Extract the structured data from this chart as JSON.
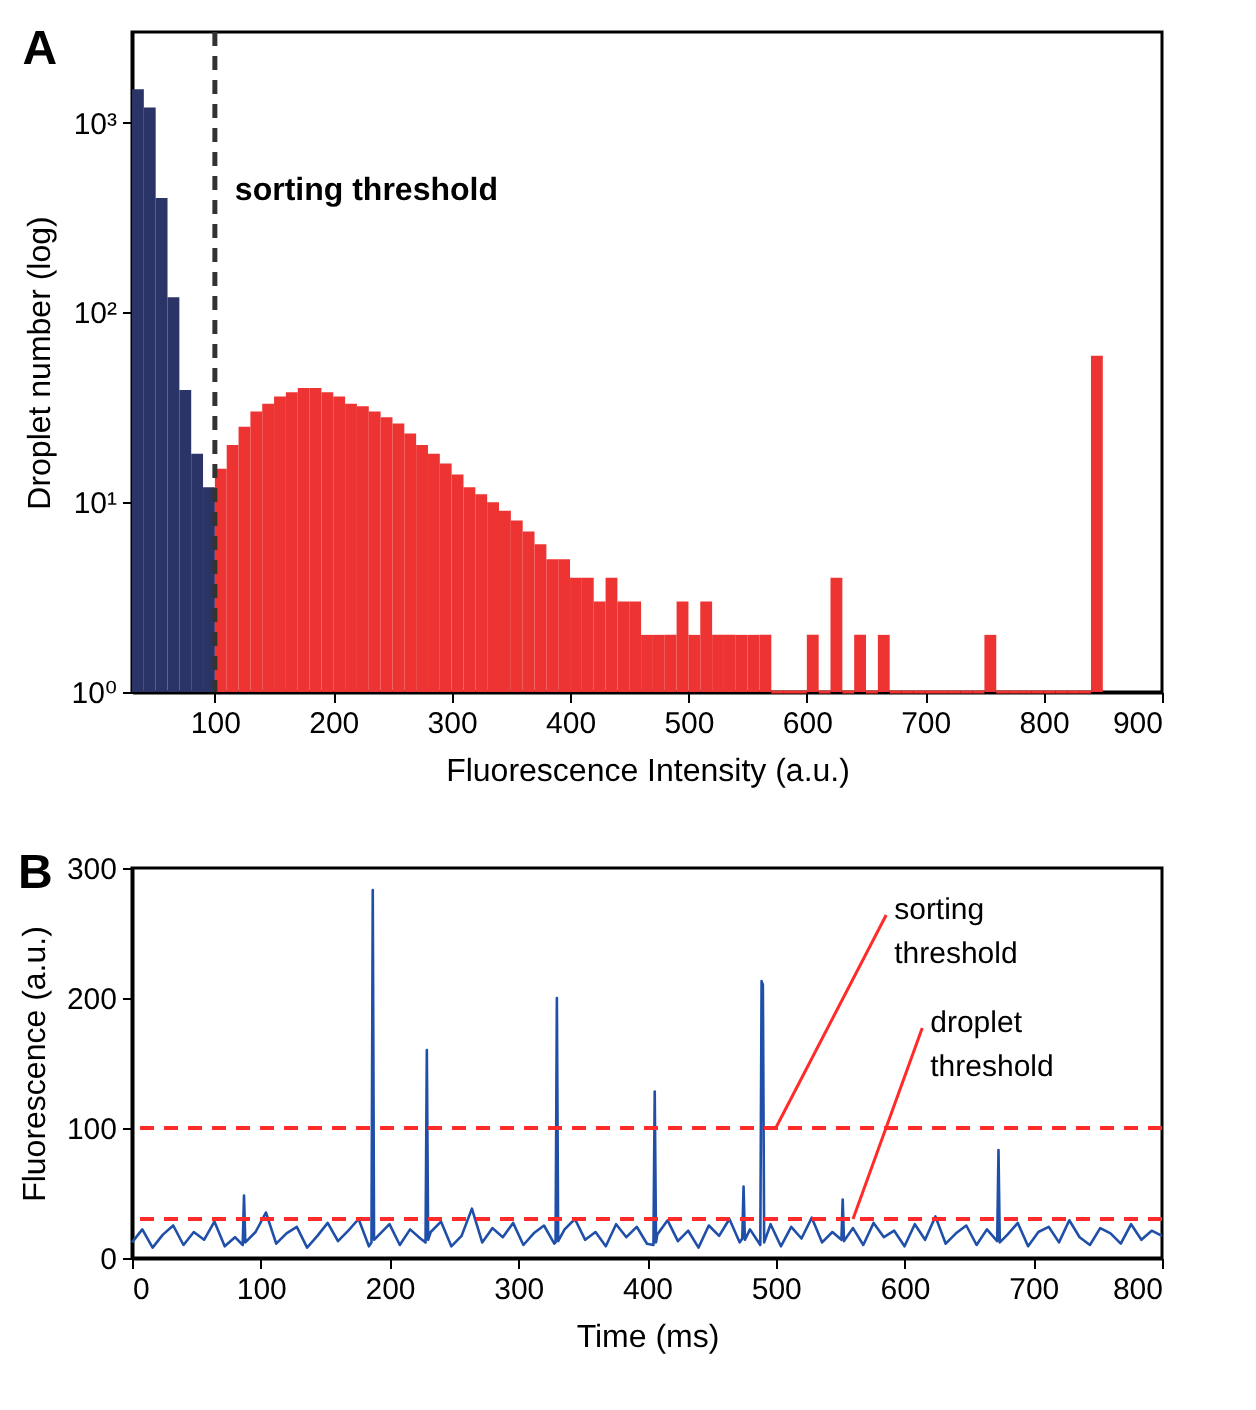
{
  "chart_data": [
    {
      "type": "histogram",
      "title": "A",
      "xlabel": "Fluorescence Intensity (a.u.)",
      "ylabel": "Droplet number (log)",
      "log": "y",
      "bins": [
        30,
        40,
        50,
        60,
        70,
        80,
        90,
        100,
        110,
        120,
        130,
        140,
        150,
        160,
        170,
        180,
        190,
        200,
        210,
        220,
        230,
        240,
        250,
        260,
        270,
        280,
        290,
        300,
        310,
        320,
        330,
        340,
        350,
        360,
        370,
        380,
        390,
        400,
        410,
        420,
        430,
        440,
        450,
        460,
        470,
        480,
        490,
        500,
        510,
        520,
        530,
        540,
        550,
        560,
        570,
        580,
        590,
        600,
        610,
        620,
        630,
        640,
        650,
        660,
        670,
        680,
        690,
        700,
        710,
        720,
        730,
        740,
        750,
        760,
        770,
        780,
        790,
        800,
        810,
        820,
        830,
        840,
        850
      ],
      "values": [
        1500,
        1200,
        400,
        120,
        39,
        18,
        12,
        15,
        20,
        25,
        30,
        33,
        36,
        38,
        40,
        40,
        38,
        36,
        33,
        32,
        30,
        28,
        26,
        23,
        20,
        18,
        16,
        14,
        12,
        11,
        10,
        9,
        8,
        7,
        6,
        5,
        5,
        4,
        4,
        3,
        4,
        3,
        3,
        2,
        2,
        2,
        3,
        2,
        3,
        2,
        2,
        2,
        2,
        2,
        null,
        null,
        null,
        2,
        null,
        4,
        null,
        2,
        null,
        2,
        null,
        null,
        null,
        null,
        null,
        null,
        null,
        null,
        2,
        null,
        null,
        null,
        null,
        null,
        null,
        null,
        null,
        59
      ],
      "colors": [
        "#2b3467",
        "#2b3467",
        "#2b3467",
        "#2b3467",
        "#2b3467",
        "#2b3467",
        "#2b3467",
        "#ee3333",
        "#ee3333",
        "#ee3333",
        "#ee3333",
        "#ee3333",
        "#ee3333",
        "#ee3333",
        "#ee3333",
        "#ee3333",
        "#ee3333",
        "#ee3333",
        "#ee3333",
        "#ee3333",
        "#ee3333",
        "#ee3333",
        "#ee3333",
        "#ee3333",
        "#ee3333",
        "#ee3333",
        "#ee3333",
        "#ee3333",
        "#ee3333",
        "#ee3333",
        "#ee3333",
        "#ee3333",
        "#ee3333",
        "#ee3333",
        "#ee3333",
        "#ee3333",
        "#ee3333",
        "#ee3333",
        "#ee3333",
        "#ee3333",
        "#ee3333",
        "#ee3333",
        "#ee3333",
        "#ee3333",
        "#ee3333",
        "#ee3333",
        "#ee3333",
        "#ee3333",
        "#ee3333",
        "#ee3333",
        "#ee3333",
        "#ee3333",
        "#ee3333",
        "#ee3333",
        "#ee3333",
        "#ee3333",
        "#ee3333",
        "#ee3333",
        "#ee3333",
        "#ee3333",
        "#ee3333",
        "#ee3333",
        "#ee3333",
        "#ee3333",
        "#ee3333",
        "#ee3333",
        "#ee3333",
        "#ee3333",
        "#ee3333",
        "#ee3333",
        "#ee3333",
        "#ee3333",
        "#ee3333",
        "#ee3333",
        "#ee3333",
        "#ee3333",
        "#ee3333",
        "#ee3333",
        "#ee3333",
        "#ee3333",
        "#ee3333",
        "#ee3333"
      ],
      "xlim": [
        30,
        900
      ],
      "xticks": [
        100,
        200,
        300,
        400,
        500,
        600,
        700,
        800,
        900
      ],
      "ylim": [
        1,
        3000
      ],
      "yticks": [
        {
          "value": 1,
          "label": "10⁰"
        },
        {
          "value": 10,
          "label": "10¹"
        },
        {
          "value": 100,
          "label": "10²"
        },
        {
          "value": 1000,
          "label": "10³"
        }
      ],
      "ref_lines": [
        {
          "axis": "x",
          "value": 100,
          "label": "sorting threshold",
          "color": "#333333",
          "line_style": "dashed"
        }
      ]
    },
    {
      "type": "line",
      "title": "B",
      "xlabel": "Time (ms)",
      "ylabel": "Fluorescence (a.u.)",
      "x": [
        0,
        8,
        16,
        24,
        32,
        40,
        48,
        56,
        64,
        72,
        80,
        86,
        87,
        88,
        96,
        104,
        112,
        120,
        128,
        136,
        144,
        152,
        160,
        168,
        176,
        184,
        186,
        187,
        188,
        192,
        200,
        208,
        216,
        224,
        228,
        229,
        230,
        232,
        240,
        248,
        256,
        264,
        272,
        280,
        288,
        296,
        304,
        312,
        320,
        328,
        329,
        330,
        331,
        336,
        344,
        352,
        360,
        368,
        376,
        384,
        392,
        400,
        405,
        406,
        407,
        408,
        416,
        424,
        432,
        440,
        448,
        456,
        464,
        472,
        474,
        475,
        476,
        480,
        488,
        489,
        490,
        491,
        496,
        504,
        512,
        520,
        528,
        536,
        544,
        551,
        552,
        553,
        560,
        568,
        576,
        584,
        592,
        600,
        608,
        616,
        624,
        632,
        640,
        648,
        656,
        664,
        672,
        673,
        674,
        680,
        688,
        696,
        704,
        712,
        720,
        728,
        736,
        744,
        752,
        760,
        768,
        776,
        784,
        792,
        800
      ],
      "series": [
        {
          "color": "#1f4fa8",
          "values": [
            12,
            22,
            8,
            18,
            25,
            10,
            20,
            14,
            28,
            9,
            16,
            10,
            48,
            12,
            20,
            35,
            11,
            19,
            24,
            8,
            17,
            27,
            13,
            21,
            30,
            9,
            12,
            283,
            14,
            18,
            26,
            10,
            22,
            15,
            12,
            160,
            14,
            20,
            28,
            9,
            17,
            38,
            12,
            23,
            16,
            27,
            10,
            19,
            25,
            11,
            12,
            200,
            13,
            22,
            30,
            14,
            20,
            9,
            26,
            16,
            24,
            11,
            10,
            128,
            12,
            18,
            29,
            13,
            21,
            8,
            25,
            17,
            30,
            12,
            15,
            55,
            14,
            22,
            10,
            213,
            210,
            12,
            26,
            9,
            24,
            15,
            31,
            12,
            20,
            14,
            45,
            13,
            23,
            10,
            27,
            16,
            21,
            9,
            26,
            14,
            32,
            11,
            19,
            25,
            10,
            22,
            13,
            83,
            12,
            18,
            27,
            9,
            20,
            24,
            12,
            29,
            16,
            10,
            23,
            19,
            11,
            26,
            14,
            21,
            17
          ]
        }
      ],
      "xlim": [
        0,
        800
      ],
      "xticks": [
        0,
        100,
        200,
        300,
        400,
        500,
        600,
        700,
        800
      ],
      "ylim": [
        0,
        300
      ],
      "yticks": [
        0,
        100,
        200,
        300
      ],
      "ref_lines": [
        {
          "axis": "y",
          "value": 100,
          "label": "sorting threshold",
          "color": "#ff2a2a",
          "line_style": "dashed"
        },
        {
          "axis": "y",
          "value": 30,
          "label": "droplet threshold",
          "color": "#ff2a2a",
          "line_style": "dashed"
        }
      ]
    }
  ]
}
